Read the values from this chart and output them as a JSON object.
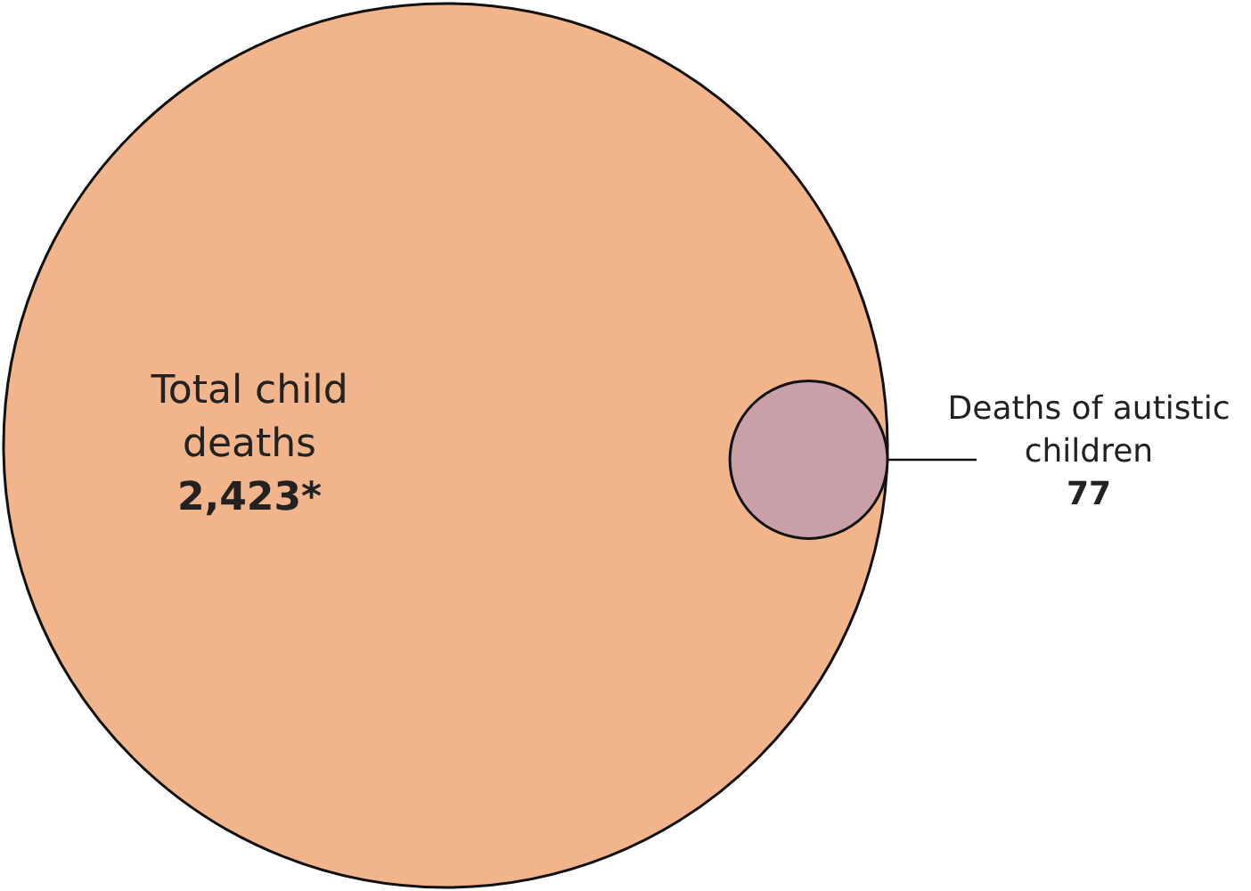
{
  "chart_data": {
    "type": "other",
    "categories": [
      "Total child deaths",
      "Deaths of autistic children"
    ],
    "values": [
      2423,
      77
    ],
    "value_labels": [
      "2,423*",
      "77"
    ],
    "colors": [
      "#f2b48a",
      "#c9a0a8"
    ]
  }
}
